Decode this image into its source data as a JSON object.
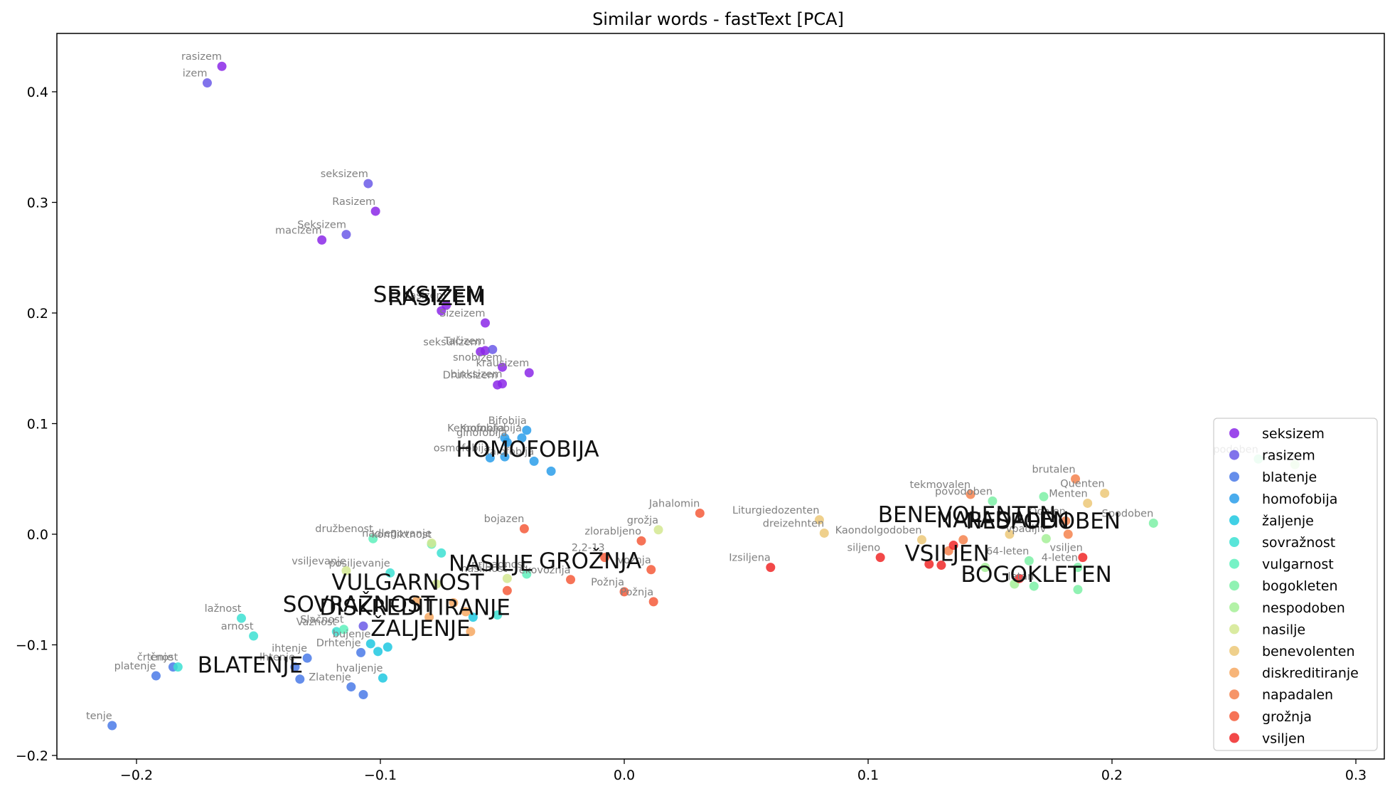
{
  "chart_data": {
    "type": "scatter",
    "title": "Similar words - fastText [PCA]",
    "xlabel": "",
    "ylabel": "",
    "xlim": [
      -0.233,
      0.309
    ],
    "ylim": [
      -0.2,
      0.4
    ],
    "yaxis_top": 0.453,
    "yaxis_bottom": -0.203,
    "xticks": [
      -0.2,
      -0.1,
      0.0,
      0.1,
      0.2,
      0.3
    ],
    "xtick_labels": [
      "−0.2",
      "−0.1",
      "0.0",
      "0.1",
      "0.2",
      "0.3"
    ],
    "yticks": [
      -0.2,
      -0.1,
      0.0,
      0.1,
      0.2,
      0.3,
      0.4
    ],
    "ytick_labels": [
      "−0.2",
      "−0.1",
      "0.0",
      "0.1",
      "0.2",
      "0.3",
      "0.4"
    ],
    "grid": false,
    "legend_position": "lower-right",
    "series": [
      {
        "name": "seksizem",
        "color": "#8b28e8",
        "points": [
          {
            "x": -0.165,
            "y": 0.423,
            "label": "rasizem"
          },
          {
            "x": -0.124,
            "y": 0.266,
            "label": "macizem"
          },
          {
            "x": -0.102,
            "y": 0.292,
            "label": "Rasizem"
          },
          {
            "x": -0.075,
            "y": 0.202,
            "label": ""
          },
          {
            "x": -0.073,
            "y": 0.207,
            "label": "Rasizem"
          },
          {
            "x": -0.057,
            "y": 0.191,
            "label": "Sizeizem"
          },
          {
            "x": -0.057,
            "y": 0.166,
            "label": "Tačizem"
          },
          {
            "x": -0.059,
            "y": 0.165,
            "label": "seksulizem"
          },
          {
            "x": -0.05,
            "y": 0.151,
            "label": "snobizem"
          },
          {
            "x": -0.039,
            "y": 0.146,
            "label": "krausizem"
          },
          {
            "x": -0.052,
            "y": 0.135,
            "label": "Druksizem"
          },
          {
            "x": -0.05,
            "y": 0.136,
            "label": "binksizem"
          }
        ]
      },
      {
        "name": "rasizem",
        "color": "#6b5ae8",
        "points": [
          {
            "x": -0.171,
            "y": 0.408,
            "label": "izem"
          },
          {
            "x": -0.105,
            "y": 0.317,
            "label": "seksizem"
          },
          {
            "x": -0.114,
            "y": 0.271,
            "label": "Seksizem"
          },
          {
            "x": -0.054,
            "y": 0.167,
            "label": ""
          },
          {
            "x": -0.107,
            "y": -0.083,
            "label": ""
          }
        ]
      },
      {
        "name": "blatenje",
        "color": "#4a7ae8",
        "points": [
          {
            "x": -0.21,
            "y": -0.173,
            "label": "tenje"
          },
          {
            "x": -0.192,
            "y": -0.128,
            "label": "platenje"
          },
          {
            "x": -0.185,
            "y": -0.12,
            "label": "črtenje"
          },
          {
            "x": -0.13,
            "y": -0.112,
            "label": "ihtenje"
          },
          {
            "x": -0.135,
            "y": -0.12,
            "label": "lhtenje"
          },
          {
            "x": -0.133,
            "y": -0.131,
            "label": ""
          },
          {
            "x": -0.112,
            "y": -0.138,
            "label": "Zlatenje"
          },
          {
            "x": -0.107,
            "y": -0.145,
            "label": ""
          },
          {
            "x": -0.108,
            "y": -0.107,
            "label": "Drhtenje"
          }
        ]
      },
      {
        "name": "homofobija",
        "color": "#2a9eea",
        "points": [
          {
            "x": -0.04,
            "y": 0.094,
            "label": "Bifobija"
          },
          {
            "x": -0.049,
            "y": 0.087,
            "label": "Kemofobija"
          },
          {
            "x": -0.048,
            "y": 0.083,
            "label": "ginofobija"
          },
          {
            "x": -0.042,
            "y": 0.087,
            "label": "Kromofobija"
          },
          {
            "x": -0.055,
            "y": 0.069,
            "label": "osmofobija"
          },
          {
            "x": -0.049,
            "y": 0.07,
            "label": ""
          },
          {
            "x": -0.037,
            "y": 0.066,
            "label": "falofobija"
          },
          {
            "x": -0.03,
            "y": 0.057,
            "label": ""
          }
        ]
      },
      {
        "name": "žaljenje",
        "color": "#1ec8e0",
        "points": [
          {
            "x": -0.099,
            "y": -0.13,
            "label": "hvaljenje"
          },
          {
            "x": -0.101,
            "y": -0.106,
            "label": ""
          },
          {
            "x": -0.097,
            "y": -0.102,
            "label": ""
          },
          {
            "x": -0.104,
            "y": -0.099,
            "label": "bujenje"
          },
          {
            "x": -0.062,
            "y": -0.075,
            "label": ""
          }
        ]
      },
      {
        "name": "sovražnost",
        "color": "#3ce0d2",
        "points": [
          {
            "x": -0.157,
            "y": -0.076,
            "label": "lažnost"
          },
          {
            "x": -0.152,
            "y": -0.092,
            "label": "arnost"
          },
          {
            "x": -0.183,
            "y": -0.12,
            "label": "čnost"
          },
          {
            "x": -0.118,
            "y": -0.088,
            "label": "Važnost"
          },
          {
            "x": -0.096,
            "y": -0.035,
            "label": "posiljevanje"
          },
          {
            "x": -0.075,
            "y": -0.017,
            "label": ""
          },
          {
            "x": -0.052,
            "y": -0.073,
            "label": ""
          }
        ]
      },
      {
        "name": "vulgarnost",
        "color": "#5ef0bc",
        "points": [
          {
            "x": -0.103,
            "y": -0.004,
            "label": "družbenost"
          },
          {
            "x": -0.079,
            "y": -0.009,
            "label": "konfliktnost"
          },
          {
            "x": -0.04,
            "y": -0.036,
            "label": "pripadnost"
          },
          {
            "x": -0.115,
            "y": -0.086,
            "label": "Slačnost"
          }
        ]
      },
      {
        "name": "bogokleten",
        "color": "#7cf0a6",
        "points": [
          {
            "x": 0.151,
            "y": 0.03,
            "label": "povodoben"
          },
          {
            "x": 0.172,
            "y": 0.034,
            "label": ""
          },
          {
            "x": 0.166,
            "y": -0.024,
            "label": "64-leten"
          },
          {
            "x": 0.186,
            "y": -0.03,
            "label": "4-leten"
          },
          {
            "x": 0.168,
            "y": -0.047,
            "label": "letan"
          },
          {
            "x": 0.186,
            "y": -0.05,
            "label": ""
          },
          {
            "x": 0.217,
            "y": 0.01,
            "label": "Spodoben"
          },
          {
            "x": 0.26,
            "y": 0.068,
            "label": "podoben"
          }
        ]
      },
      {
        "name": "nespodoben",
        "color": "#a6f098",
        "points": [
          {
            "x": 0.173,
            "y": -0.004,
            "label": "vpadljiv"
          },
          {
            "x": 0.148,
            "y": -0.03,
            "label": ""
          },
          {
            "x": 0.16,
            "y": -0.045,
            "label": ""
          },
          {
            "x": 0.275,
            "y": 0.063,
            "label": "Zoben"
          }
        ]
      },
      {
        "name": "nasilje",
        "color": "#d4e890",
        "points": [
          {
            "x": -0.114,
            "y": -0.033,
            "label": "vsiljevanje"
          },
          {
            "x": -0.079,
            "y": -0.008,
            "label": "nadlegovanje"
          },
          {
            "x": 0.014,
            "y": 0.004,
            "label": "grožja"
          },
          {
            "x": -0.048,
            "y": -0.04,
            "label": "nasilnost"
          },
          {
            "x": -0.077,
            "y": -0.045,
            "label": ""
          }
        ]
      },
      {
        "name": "benevolenten",
        "color": "#ecc878",
        "points": [
          {
            "x": 0.08,
            "y": 0.013,
            "label": "Liturgiedozenten"
          },
          {
            "x": 0.082,
            "y": 0.001,
            "label": "dreizehnten"
          },
          {
            "x": 0.19,
            "y": 0.028,
            "label": "Menten"
          },
          {
            "x": 0.197,
            "y": 0.037,
            "label": "Quenten"
          },
          {
            "x": 0.158,
            "y": 0.0,
            "label": ""
          },
          {
            "x": 0.122,
            "y": -0.005,
            "label": "Kaondolgodoben"
          }
        ]
      },
      {
        "name": "diskreditiranje",
        "color": "#f6a862",
        "points": [
          {
            "x": -0.07,
            "y": -0.062,
            "label": ""
          },
          {
            "x": -0.065,
            "y": -0.07,
            "label": ""
          },
          {
            "x": -0.08,
            "y": -0.075,
            "label": ""
          },
          {
            "x": -0.063,
            "y": -0.088,
            "label": ""
          },
          {
            "x": -0.085,
            "y": -0.06,
            "label": ""
          }
        ]
      },
      {
        "name": "napadalen",
        "color": "#f4824e",
        "points": [
          {
            "x": 0.142,
            "y": 0.036,
            "label": "tekmovalen"
          },
          {
            "x": 0.181,
            "y": 0.012,
            "label": "Odalen"
          },
          {
            "x": 0.182,
            "y": 0.0,
            "label": ""
          },
          {
            "x": 0.139,
            "y": -0.005,
            "label": ""
          },
          {
            "x": 0.133,
            "y": -0.015,
            "label": ""
          },
          {
            "x": 0.185,
            "y": 0.05,
            "label": "brutalen"
          }
        ]
      },
      {
        "name": "grožnja",
        "color": "#f45a3a",
        "points": [
          {
            "x": -0.041,
            "y": 0.005,
            "label": "bojazen"
          },
          {
            "x": 0.031,
            "y": 0.019,
            "label": "Jahalomin"
          },
          {
            "x": 0.007,
            "y": -0.006,
            "label": "zlorabljeno"
          },
          {
            "x": -0.008,
            "y": -0.021,
            "label": "2,2-13"
          },
          {
            "x": 0.011,
            "y": -0.032,
            "label": "vožnja"
          },
          {
            "x": -0.022,
            "y": -0.041,
            "label": "ekovožnja"
          },
          {
            "x": 0.0,
            "y": -0.052,
            "label": "Požnja"
          },
          {
            "x": 0.012,
            "y": -0.061,
            "label": "Požnja"
          },
          {
            "x": -0.048,
            "y": -0.051,
            "label": ""
          }
        ]
      },
      {
        "name": "vsiljen",
        "color": "#f02828",
        "points": [
          {
            "x": 0.06,
            "y": -0.03,
            "label": "Izsiljena"
          },
          {
            "x": 0.105,
            "y": -0.021,
            "label": "siljeno"
          },
          {
            "x": 0.125,
            "y": -0.027,
            "label": ""
          },
          {
            "x": 0.13,
            "y": -0.028,
            "label": ""
          },
          {
            "x": 0.135,
            "y": -0.01,
            "label": ""
          },
          {
            "x": 0.188,
            "y": -0.021,
            "label": "vsiljen"
          },
          {
            "x": 0.162,
            "y": -0.04,
            "label": ""
          }
        ]
      }
    ],
    "query_labels": [
      {
        "text": "SEKSIZEM",
        "x": -0.103,
        "y": 0.21
      },
      {
        "text": "RASIZEM",
        "x": -0.097,
        "y": 0.207
      },
      {
        "text": "HOMOFOBIJA",
        "x": -0.069,
        "y": 0.07
      },
      {
        "text": "NASILJE",
        "x": -0.072,
        "y": -0.033
      },
      {
        "text": "GROŽNJA",
        "x": -0.035,
        "y": -0.031
      },
      {
        "text": "VULGARNOST",
        "x": -0.12,
        "y": -0.05
      },
      {
        "text": "SOVRAŽNOST",
        "x": -0.14,
        "y": -0.07
      },
      {
        "text": "DISKREDITIRANJE",
        "x": -0.125,
        "y": -0.073
      },
      {
        "text": "ŽALJENJE",
        "x": -0.104,
        "y": -0.092
      },
      {
        "text": "BLATENJE",
        "x": -0.175,
        "y": -0.125
      },
      {
        "text": "BENEVOLENTEN",
        "x": 0.104,
        "y": 0.011
      },
      {
        "text": "NAPADALEN",
        "x": 0.128,
        "y": 0.006
      },
      {
        "text": "NESPODOBEN",
        "x": 0.14,
        "y": 0.005
      },
      {
        "text": "VSILJEN",
        "x": 0.115,
        "y": -0.024
      },
      {
        "text": "BOGOKLETEN",
        "x": 0.138,
        "y": -0.043
      }
    ]
  }
}
